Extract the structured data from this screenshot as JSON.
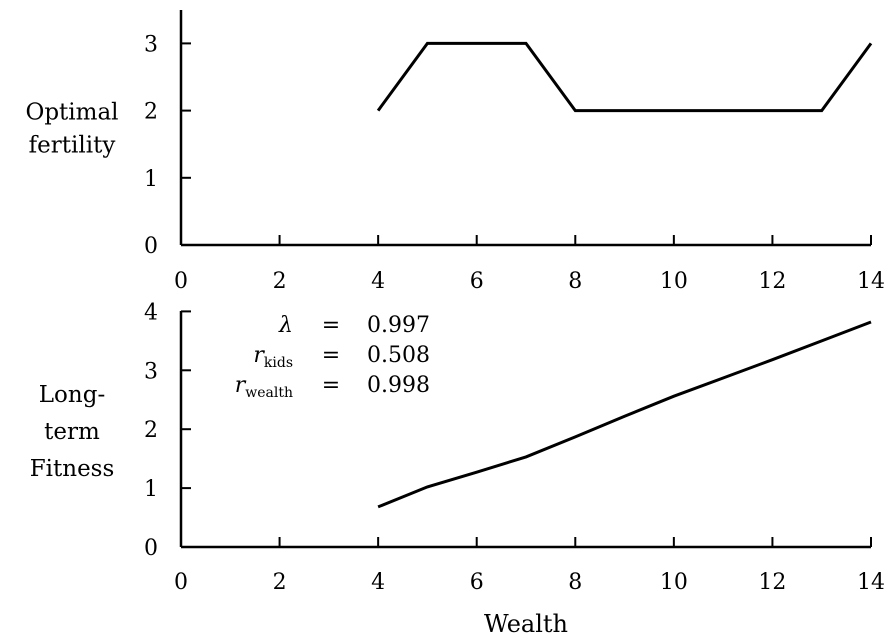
{
  "chart_data": [
    {
      "type": "line",
      "ylabel_lines": [
        "Optimal",
        "fertility"
      ],
      "xlabel": "",
      "xlim": [
        0,
        14
      ],
      "ylim": [
        0,
        3.5
      ],
      "x_ticks": [
        0,
        2,
        4,
        6,
        8,
        10,
        12,
        14
      ],
      "y_ticks": [
        0,
        1,
        2,
        3
      ],
      "grid": false,
      "series": [
        {
          "x": [
            4,
            5,
            6,
            7,
            8,
            9,
            10,
            11,
            12,
            13,
            14
          ],
          "y": [
            2,
            3,
            3,
            3,
            2,
            2,
            2,
            2,
            2,
            2,
            3
          ]
        }
      ]
    },
    {
      "type": "line",
      "ylabel_lines": [
        "Long-",
        "term",
        "Fitness"
      ],
      "xlabel": "Wealth",
      "xlim": [
        0,
        14
      ],
      "ylim": [
        0,
        4
      ],
      "x_ticks": [
        0,
        2,
        4,
        6,
        8,
        10,
        12,
        14
      ],
      "y_ticks": [
        0,
        1,
        2,
        3,
        4
      ],
      "grid": false,
      "series": [
        {
          "x": [
            4,
            5,
            6,
            7,
            8,
            9,
            10,
            11,
            12,
            13,
            14
          ],
          "y": [
            0.68,
            1.02,
            1.27,
            1.53,
            1.87,
            2.22,
            2.56,
            2.87,
            3.18,
            3.5,
            3.82
          ]
        }
      ],
      "annotations": [
        {
          "symbol": "λ",
          "base": "",
          "sub": "",
          "eq": "=",
          "value": "0.997"
        },
        {
          "symbol": "",
          "base": "r",
          "sub": "kids",
          "eq": "=",
          "value": "0.508"
        },
        {
          "symbol": "",
          "base": "r",
          "sub": "wealth",
          "eq": "=",
          "value": "0.998"
        }
      ]
    }
  ]
}
